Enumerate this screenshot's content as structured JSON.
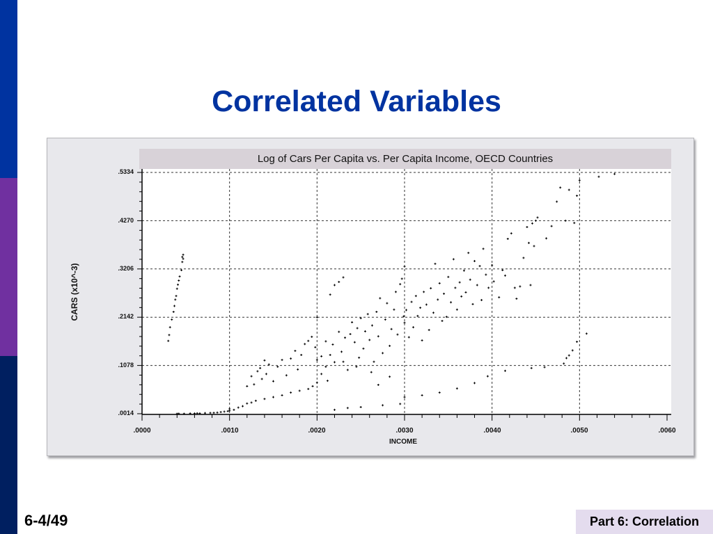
{
  "slide": {
    "title": "Correlated Variables",
    "page_number": "6-4/49",
    "footer_tag": "Part 6: Correlation",
    "colors": {
      "title": "#0033a0",
      "sidebar_top": "#0033a0",
      "sidebar_mid": "#7030a0",
      "sidebar_bottom": "#001f60",
      "footer_bg": "#e4dcee"
    }
  },
  "chart_data": {
    "type": "scatter",
    "title": "Log of Cars Per Capita vs. Per Capita Income, OECD Countries",
    "xlabel": "INCOME",
    "ylabel": "CARS (x10^-3)",
    "xlim": [
      0.0,
      0.006
    ],
    "ylim": [
      0.0014,
      0.5334
    ],
    "x_ticks": [
      ".0000",
      ".0010",
      ".0020",
      ".0030",
      ".0040",
      ".0050",
      ".0060"
    ],
    "y_ticks": [
      ".0014",
      ".1078",
      ".2142",
      ".3206",
      ".4270",
      ".5334"
    ],
    "grid": true,
    "grid_style": "dashed",
    "marker": "+",
    "legend": null,
    "points": [
      [
        0.0004,
        0.0014
      ],
      [
        0.00042,
        0.0016
      ],
      [
        0.00048,
        0.0014
      ],
      [
        0.00055,
        0.002
      ],
      [
        0.0006,
        0.002
      ],
      [
        0.00063,
        0.0024
      ],
      [
        0.00066,
        0.0022
      ],
      [
        0.00072,
        0.0028
      ],
      [
        0.00078,
        0.0032
      ],
      [
        0.00082,
        0.0034
      ],
      [
        0.00086,
        0.004
      ],
      [
        0.0009,
        0.005
      ],
      [
        0.00094,
        0.006
      ],
      [
        0.00098,
        0.007
      ],
      [
        0.001,
        0.008
      ],
      [
        0.001,
        0.012
      ],
      [
        0.00105,
        0.01
      ],
      [
        0.0011,
        0.015
      ],
      [
        0.00115,
        0.018
      ],
      [
        0.0012,
        0.024
      ],
      [
        0.00125,
        0.026
      ],
      [
        0.0013,
        0.03
      ],
      [
        0.0014,
        0.034
      ],
      [
        0.0015,
        0.038
      ],
      [
        0.0016,
        0.042
      ],
      [
        0.0017,
        0.048
      ],
      [
        0.0018,
        0.052
      ],
      [
        0.0019,
        0.056
      ],
      [
        0.00195,
        0.062
      ],
      [
        0.002,
        0.07
      ],
      [
        0.0003,
        0.162
      ],
      [
        0.00031,
        0.175
      ],
      [
        0.00032,
        0.192
      ],
      [
        0.00034,
        0.209
      ],
      [
        0.00036,
        0.226
      ],
      [
        0.00037,
        0.239
      ],
      [
        0.00038,
        0.253
      ],
      [
        0.00039,
        0.261
      ],
      [
        0.0004,
        0.277
      ],
      [
        0.00041,
        0.286
      ],
      [
        0.00042,
        0.295
      ],
      [
        0.00043,
        0.304
      ],
      [
        0.00045,
        0.318
      ],
      [
        0.00046,
        0.336
      ],
      [
        0.00046,
        0.347
      ],
      [
        0.00047,
        0.352
      ],
      [
        0.00047,
        0.343
      ],
      [
        0.0012,
        0.062
      ],
      [
        0.00125,
        0.084
      ],
      [
        0.00128,
        0.066
      ],
      [
        0.00132,
        0.095
      ],
      [
        0.00135,
        0.102
      ],
      [
        0.00137,
        0.078
      ],
      [
        0.0014,
        0.119
      ],
      [
        0.00142,
        0.089
      ],
      [
        0.00145,
        0.11
      ],
      [
        0.0015,
        0.073
      ],
      [
        0.00155,
        0.105
      ],
      [
        0.0016,
        0.12
      ],
      [
        0.00165,
        0.086
      ],
      [
        0.0017,
        0.123
      ],
      [
        0.00175,
        0.14
      ],
      [
        0.00178,
        0.099
      ],
      [
        0.00182,
        0.131
      ],
      [
        0.00186,
        0.155
      ],
      [
        0.0019,
        0.162
      ],
      [
        0.00194,
        0.171
      ],
      [
        0.00198,
        0.148
      ],
      [
        0.002,
        0.214
      ],
      [
        0.00205,
        0.128
      ],
      [
        0.0021,
        0.161
      ],
      [
        0.00215,
        0.264
      ],
      [
        0.0022,
        0.285
      ],
      [
        0.00225,
        0.292
      ],
      [
        0.0023,
        0.302
      ],
      [
        0.002,
        0.12
      ],
      [
        0.00205,
        0.089
      ],
      [
        0.0021,
        0.105
      ],
      [
        0.00212,
        0.074
      ],
      [
        0.00215,
        0.131
      ],
      [
        0.00218,
        0.154
      ],
      [
        0.0022,
        0.115
      ],
      [
        0.00225,
        0.182
      ],
      [
        0.00228,
        0.138
      ],
      [
        0.00232,
        0.169
      ],
      [
        0.00235,
        0.098
      ],
      [
        0.00238,
        0.177
      ],
      [
        0.0024,
        0.203
      ],
      [
        0.00243,
        0.159
      ],
      [
        0.00246,
        0.19
      ],
      [
        0.00248,
        0.125
      ],
      [
        0.0025,
        0.212
      ],
      [
        0.00253,
        0.145
      ],
      [
        0.00255,
        0.183
      ],
      [
        0.00258,
        0.221
      ],
      [
        0.0026,
        0.164
      ],
      [
        0.00263,
        0.196
      ],
      [
        0.00265,
        0.116
      ],
      [
        0.00268,
        0.226
      ],
      [
        0.0027,
        0.172
      ],
      [
        0.00272,
        0.256
      ],
      [
        0.00275,
        0.135
      ],
      [
        0.00278,
        0.209
      ],
      [
        0.0028,
        0.245
      ],
      [
        0.00283,
        0.151
      ],
      [
        0.00285,
        0.188
      ],
      [
        0.00288,
        0.231
      ],
      [
        0.0029,
        0.27
      ],
      [
        0.00292,
        0.176
      ],
      [
        0.00295,
        0.287
      ],
      [
        0.00297,
        0.299
      ],
      [
        0.00299,
        0.216
      ],
      [
        0.003,
        0.326
      ],
      [
        0.003,
        0.202
      ],
      [
        0.00302,
        0.23
      ],
      [
        0.00305,
        0.17
      ],
      [
        0.00308,
        0.248
      ],
      [
        0.0031,
        0.192
      ],
      [
        0.00313,
        0.261
      ],
      [
        0.00315,
        0.217
      ],
      [
        0.00318,
        0.235
      ],
      [
        0.0032,
        0.163
      ],
      [
        0.00322,
        0.27
      ],
      [
        0.00325,
        0.242
      ],
      [
        0.00328,
        0.186
      ],
      [
        0.0033,
        0.278
      ],
      [
        0.00333,
        0.224
      ],
      [
        0.00335,
        0.332
      ],
      [
        0.00338,
        0.253
      ],
      [
        0.0034,
        0.289
      ],
      [
        0.00343,
        0.206
      ],
      [
        0.00345,
        0.266
      ],
      [
        0.00348,
        0.215
      ],
      [
        0.0035,
        0.303
      ],
      [
        0.00353,
        0.247
      ],
      [
        0.00356,
        0.342
      ],
      [
        0.00358,
        0.279
      ],
      [
        0.0036,
        0.231
      ],
      [
        0.00363,
        0.291
      ],
      [
        0.00365,
        0.26
      ],
      [
        0.00368,
        0.317
      ],
      [
        0.0037,
        0.269
      ],
      [
        0.00373,
        0.356
      ],
      [
        0.00375,
        0.297
      ],
      [
        0.00378,
        0.243
      ],
      [
        0.0038,
        0.338
      ],
      [
        0.00383,
        0.285
      ],
      [
        0.00386,
        0.327
      ],
      [
        0.00388,
        0.252
      ],
      [
        0.0039,
        0.365
      ],
      [
        0.00393,
        0.308
      ],
      [
        0.00396,
        0.279
      ],
      [
        0.004,
        0.329
      ],
      [
        0.00402,
        0.293
      ],
      [
        0.00408,
        0.258
      ],
      [
        0.00412,
        0.318
      ],
      [
        0.00415,
        0.306
      ],
      [
        0.00418,
        0.387
      ],
      [
        0.00422,
        0.399
      ],
      [
        0.00426,
        0.279
      ],
      [
        0.00428,
        0.255
      ],
      [
        0.00432,
        0.282
      ],
      [
        0.00436,
        0.345
      ],
      [
        0.0044,
        0.413
      ],
      [
        0.00442,
        0.378
      ],
      [
        0.00444,
        0.285
      ],
      [
        0.00446,
        0.421
      ],
      [
        0.00448,
        0.371
      ],
      [
        0.0045,
        0.427
      ],
      [
        0.00452,
        0.434
      ],
      [
        0.00462,
        0.388
      ],
      [
        0.00468,
        0.415
      ],
      [
        0.00474,
        0.469
      ],
      [
        0.00478,
        0.5
      ],
      [
        0.00484,
        0.427
      ],
      [
        0.00488,
        0.495
      ],
      [
        0.00494,
        0.422
      ],
      [
        0.00497,
        0.482
      ],
      [
        0.005,
        0.516
      ],
      [
        0.00522,
        0.524
      ],
      [
        0.0054,
        0.53
      ],
      [
        0.0022,
        0.01
      ],
      [
        0.00235,
        0.014
      ],
      [
        0.0025,
        0.016
      ],
      [
        0.00275,
        0.02
      ],
      [
        0.00295,
        0.023
      ],
      [
        0.003,
        0.038
      ],
      [
        0.0032,
        0.042
      ],
      [
        0.0034,
        0.048
      ],
      [
        0.0036,
        0.057
      ],
      [
        0.0038,
        0.069
      ],
      [
        0.00395,
        0.084
      ],
      [
        0.00415,
        0.096
      ],
      [
        0.00445,
        0.102
      ],
      [
        0.0046,
        0.104
      ],
      [
        0.00482,
        0.112
      ],
      [
        0.00485,
        0.124
      ],
      [
        0.00488,
        0.13
      ],
      [
        0.00492,
        0.141
      ],
      [
        0.00497,
        0.16
      ],
      [
        0.00508,
        0.178
      ],
      [
        0.0023,
        0.116
      ],
      [
        0.00245,
        0.105
      ],
      [
        0.00262,
        0.093
      ],
      [
        0.00283,
        0.083
      ],
      [
        0.0027,
        0.065
      ]
    ]
  }
}
